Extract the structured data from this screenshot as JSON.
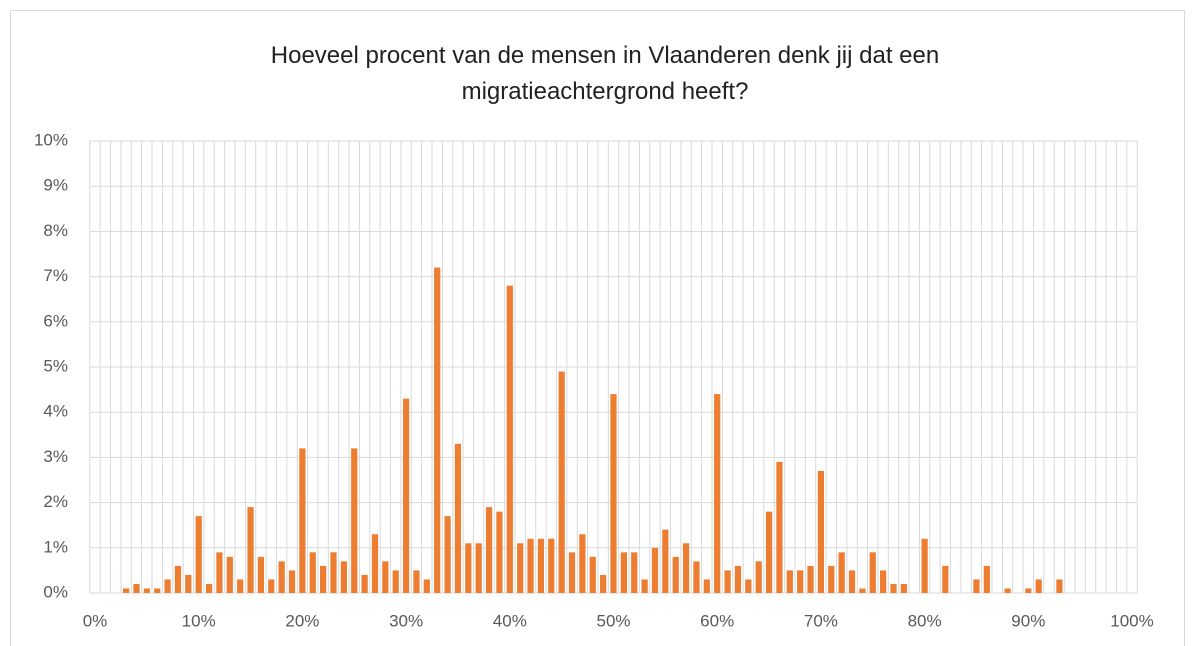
{
  "chart_data": {
    "type": "bar",
    "title": "Hoeveel procent van de mensen in Vlaanderen denk jij dat een migratieachtergrond heeft?",
    "categories": [
      "0%",
      null,
      null,
      null,
      null,
      null,
      null,
      null,
      null,
      null,
      "10%",
      null,
      null,
      null,
      null,
      null,
      null,
      null,
      null,
      null,
      "20%",
      null,
      null,
      null,
      null,
      null,
      null,
      null,
      null,
      null,
      "30%",
      null,
      null,
      null,
      null,
      null,
      null,
      null,
      null,
      null,
      "40%",
      null,
      null,
      null,
      null,
      null,
      null,
      null,
      null,
      null,
      "50%",
      null,
      null,
      null,
      null,
      null,
      null,
      null,
      null,
      null,
      "60%",
      null,
      null,
      null,
      null,
      null,
      null,
      null,
      null,
      null,
      "70%",
      null,
      null,
      null,
      null,
      null,
      null,
      null,
      null,
      null,
      "80%",
      null,
      null,
      null,
      null,
      null,
      null,
      null,
      null,
      null,
      "90%",
      null,
      null,
      null,
      null,
      null,
      null,
      null,
      null,
      null,
      "100%"
    ],
    "values": [
      0,
      0,
      0,
      0.1,
      0.2,
      0.1,
      0.1,
      0.3,
      0.6,
      0.4,
      1.7,
      0.2,
      0.9,
      0.8,
      0.3,
      1.9,
      0.8,
      0.3,
      0.7,
      0.5,
      3.2,
      0.9,
      0.6,
      0.9,
      0.7,
      3.2,
      0.4,
      1.3,
      0.7,
      0.5,
      4.3,
      0.5,
      0.3,
      7.2,
      1.7,
      3.3,
      1.1,
      1.1,
      1.9,
      1.8,
      6.8,
      1.1,
      1.2,
      1.2,
      1.2,
      4.9,
      0.9,
      1.3,
      0.8,
      0.4,
      4.4,
      0.9,
      0.9,
      0.3,
      1.0,
      1.4,
      0.8,
      1.1,
      0.7,
      0.3,
      4.4,
      0.5,
      0.6,
      0.3,
      0.7,
      1.8,
      2.9,
      0.5,
      0.5,
      0.6,
      2.7,
      0.6,
      0.9,
      0.5,
      0.1,
      0.9,
      0.5,
      0.2,
      0.2,
      0,
      1.2,
      0,
      0.6,
      0,
      0,
      0.3,
      0.6,
      0,
      0.1,
      0,
      0.1,
      0.3,
      0,
      0.3,
      0,
      0,
      0,
      0,
      0,
      0,
      0
    ],
    "color": "#ed7d31",
    "ylim": [
      0,
      10
    ],
    "yticks": [
      {
        "value": 0,
        "label": "0%"
      },
      {
        "value": 1,
        "label": "1%"
      },
      {
        "value": 2,
        "label": "2%"
      },
      {
        "value": 3,
        "label": "3%"
      },
      {
        "value": 4,
        "label": "4%"
      },
      {
        "value": 5,
        "label": "5%"
      },
      {
        "value": 6,
        "label": "6%"
      },
      {
        "value": 7,
        "label": "7%"
      },
      {
        "value": 8,
        "label": "8%"
      },
      {
        "value": 9,
        "label": "9%"
      },
      {
        "value": 10,
        "label": "10%"
      }
    ],
    "grid": true
  }
}
